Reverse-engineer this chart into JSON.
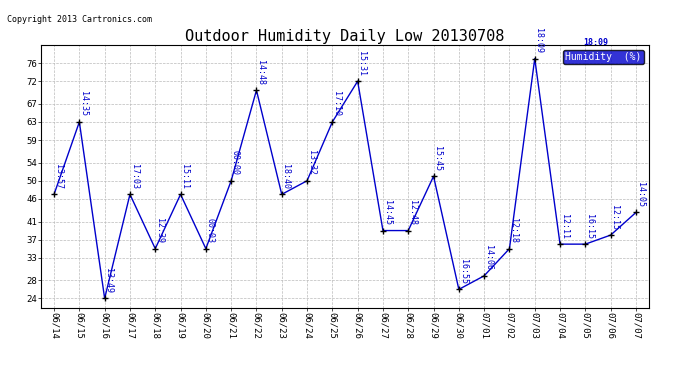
{
  "title": "Outdoor Humidity Daily Low 20130708",
  "copyright": "Copyright 2013 Cartronics.com",
  "legend_label": "Humidity  (%)",
  "x_labels": [
    "06/14",
    "06/15",
    "06/16",
    "06/17",
    "06/18",
    "06/19",
    "06/20",
    "06/21",
    "06/22",
    "06/23",
    "06/24",
    "06/25",
    "06/26",
    "06/27",
    "06/28",
    "06/29",
    "06/30",
    "07/01",
    "07/02",
    "07/03",
    "07/04",
    "07/05",
    "07/06",
    "07/07"
  ],
  "y_values": [
    47,
    63,
    24,
    47,
    35,
    47,
    35,
    50,
    70,
    47,
    50,
    63,
    72,
    39,
    39,
    51,
    26,
    29,
    35,
    77,
    36,
    36,
    38,
    43
  ],
  "time_labels": [
    "13:57",
    "14:35",
    "13:49",
    "17:03",
    "12:39",
    "15:11",
    "00:03",
    "00:00",
    "14:48",
    "18:40",
    "13:32",
    "17:10",
    "15:31",
    "14:45",
    "12:48",
    "15:45",
    "16:55",
    "14:06",
    "12:18",
    "18:09",
    "12:11",
    "16:15",
    "12:15",
    "14:05"
  ],
  "y_ticks": [
    24,
    28,
    33,
    37,
    41,
    46,
    50,
    54,
    59,
    63,
    67,
    72,
    76
  ],
  "ylim": [
    22,
    80
  ],
  "line_color": "#0000cc",
  "marker_color": "#000000",
  "bg_color": "#ffffff",
  "grid_color": "#bbbbbb",
  "title_fontsize": 11,
  "label_fontsize": 6.5,
  "time_label_fontsize": 6,
  "copyright_fontsize": 6,
  "legend_bg": "#0000cc",
  "legend_text_color": "#ffffff"
}
